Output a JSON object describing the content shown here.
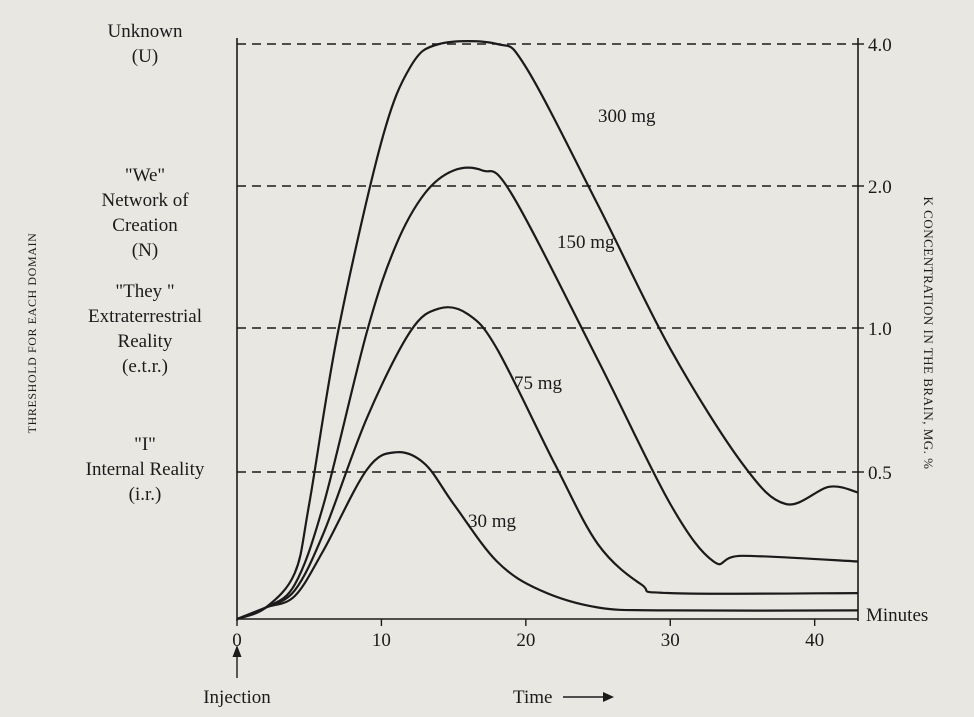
{
  "chart_data": {
    "type": "line",
    "title": "",
    "xlabel": "Time",
    "x_unit_label": "Minutes",
    "x_annotation": "Injection",
    "ylabel_left": "THRESHOLD FOR EACH DOMAIN",
    "ylabel_right": "K CONCENTRATION IN THE BRAIN, MG. %",
    "xlim": [
      0,
      43
    ],
    "x_ticks": [
      0,
      10,
      20,
      30,
      40
    ],
    "x_tick_labels": [
      "0",
      "10",
      "20",
      "30",
      "40"
    ],
    "y_tick_labels_right": [
      "4.0",
      "2.0",
      "1.0",
      "0.5"
    ],
    "grid": false,
    "thresholds": [
      {
        "value": "4.0",
        "label_lines": [
          "Unknown",
          "(U)"
        ]
      },
      {
        "value": "2.0",
        "label_lines": [
          "\"We\"",
          "Network of",
          "Creation",
          "(N)"
        ]
      },
      {
        "value": "1.0",
        "label_lines": [
          "\"They \"",
          "Extraterrestrial",
          "Reality",
          "(e.t.r.)"
        ]
      },
      {
        "value": "0.5",
        "label_lines": [
          "\"I\"",
          "Internal Reality",
          "(i.r.)"
        ]
      }
    ],
    "series": [
      {
        "name": "300 mg",
        "points": [
          [
            0,
            0
          ],
          [
            2,
            0.02
          ],
          [
            4,
            0.08
          ],
          [
            5,
            0.2
          ],
          [
            7,
            0.5
          ],
          [
            10,
            0.83
          ],
          [
            12,
            0.96
          ],
          [
            14,
            1.0
          ],
          [
            18,
            1.0
          ],
          [
            20,
            0.96
          ],
          [
            25,
            0.72
          ],
          [
            30,
            0.47
          ],
          [
            35,
            0.27
          ],
          [
            38,
            0.2
          ],
          [
            41,
            0.23
          ],
          [
            43,
            0.22
          ]
        ]
      },
      {
        "name": "150 mg",
        "points": [
          [
            0,
            0
          ],
          [
            2,
            0.02
          ],
          [
            4,
            0.06
          ],
          [
            6,
            0.2
          ],
          [
            9,
            0.5
          ],
          [
            11,
            0.65
          ],
          [
            13,
            0.74
          ],
          [
            15,
            0.78
          ],
          [
            17,
            0.78
          ],
          [
            19,
            0.74
          ],
          [
            25,
            0.45
          ],
          [
            30,
            0.2
          ],
          [
            33,
            0.1
          ],
          [
            35,
            0.11
          ],
          [
            43,
            0.1
          ]
        ]
      },
      {
        "name": "75 mg",
        "points": [
          [
            0,
            0
          ],
          [
            2,
            0.02
          ],
          [
            4,
            0.05
          ],
          [
            6,
            0.15
          ],
          [
            9,
            0.35
          ],
          [
            12,
            0.5
          ],
          [
            14,
            0.54
          ],
          [
            16,
            0.53
          ],
          [
            18,
            0.47
          ],
          [
            22,
            0.27
          ],
          [
            25,
            0.13
          ],
          [
            28,
            0.06
          ],
          [
            30,
            0.045
          ],
          [
            43,
            0.045
          ]
        ]
      },
      {
        "name": "30 mg",
        "points": [
          [
            0,
            0
          ],
          [
            2,
            0.02
          ],
          [
            4,
            0.04
          ],
          [
            6,
            0.12
          ],
          [
            9,
            0.26
          ],
          [
            11,
            0.29
          ],
          [
            13,
            0.27
          ],
          [
            15,
            0.2
          ],
          [
            18,
            0.1
          ],
          [
            21,
            0.05
          ],
          [
            25,
            0.02
          ],
          [
            30,
            0.015
          ],
          [
            43,
            0.015
          ]
        ]
      }
    ]
  }
}
